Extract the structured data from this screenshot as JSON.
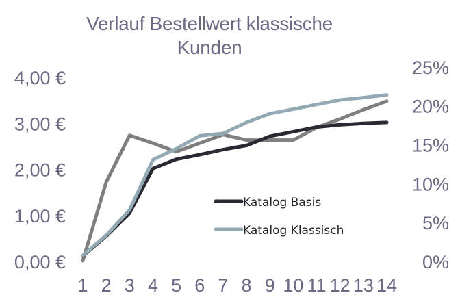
{
  "chart_data": {
    "type": "line",
    "title_line1": "Verlauf Bestellwert klassische",
    "title_line2": "Kunden",
    "categories": [
      "1",
      "2",
      "3",
      "4",
      "5",
      "6",
      "7",
      "8",
      "9",
      "10",
      "11",
      "12",
      "13",
      "14"
    ],
    "y_left": {
      "ticks": [
        {
          "value": 0,
          "label": "0,00 €"
        },
        {
          "value": 1,
          "label": "1,00 €"
        },
        {
          "value": 2,
          "label": "2,00 €"
        },
        {
          "value": 3,
          "label": "3,00 €"
        },
        {
          "value": 4,
          "label": "4,00 €"
        }
      ],
      "range": [
        0,
        4.3
      ]
    },
    "y_right": {
      "ticks": [
        {
          "value": 0,
          "label": "0%"
        },
        {
          "value": 5,
          "label": "5%"
        },
        {
          "value": 10,
          "label": "10%"
        },
        {
          "value": 15,
          "label": "15%"
        },
        {
          "value": 20,
          "label": "20%"
        },
        {
          "value": 25,
          "label": "25%"
        }
      ],
      "range": [
        0,
        25.5
      ]
    },
    "series": [
      {
        "name": "Katalog Basis",
        "axis": "left",
        "color": "#2a2832",
        "values": [
          0.12,
          0.55,
          1.05,
          2.02,
          2.22,
          2.32,
          2.43,
          2.52,
          2.72,
          2.82,
          2.92,
          2.97,
          3.0,
          3.02
        ]
      },
      {
        "name": "Katalog Klassisch",
        "axis": "left",
        "color": "#93aab4",
        "values": [
          0.13,
          0.57,
          1.12,
          2.21,
          2.45,
          2.73,
          2.78,
          3.02,
          3.21,
          3.31,
          3.41,
          3.51,
          3.56,
          3.62
        ]
      },
      {
        "axis": "right",
        "color": "#7f7f7f",
        "values": [
          0.1,
          10.2,
          16.2,
          15.2,
          14.1,
          15.2,
          16.3,
          15.6,
          15.6,
          15.6,
          17.2,
          18.3,
          19.5,
          20.6
        ]
      }
    ],
    "legend_position": "center-right",
    "grid": false
  }
}
